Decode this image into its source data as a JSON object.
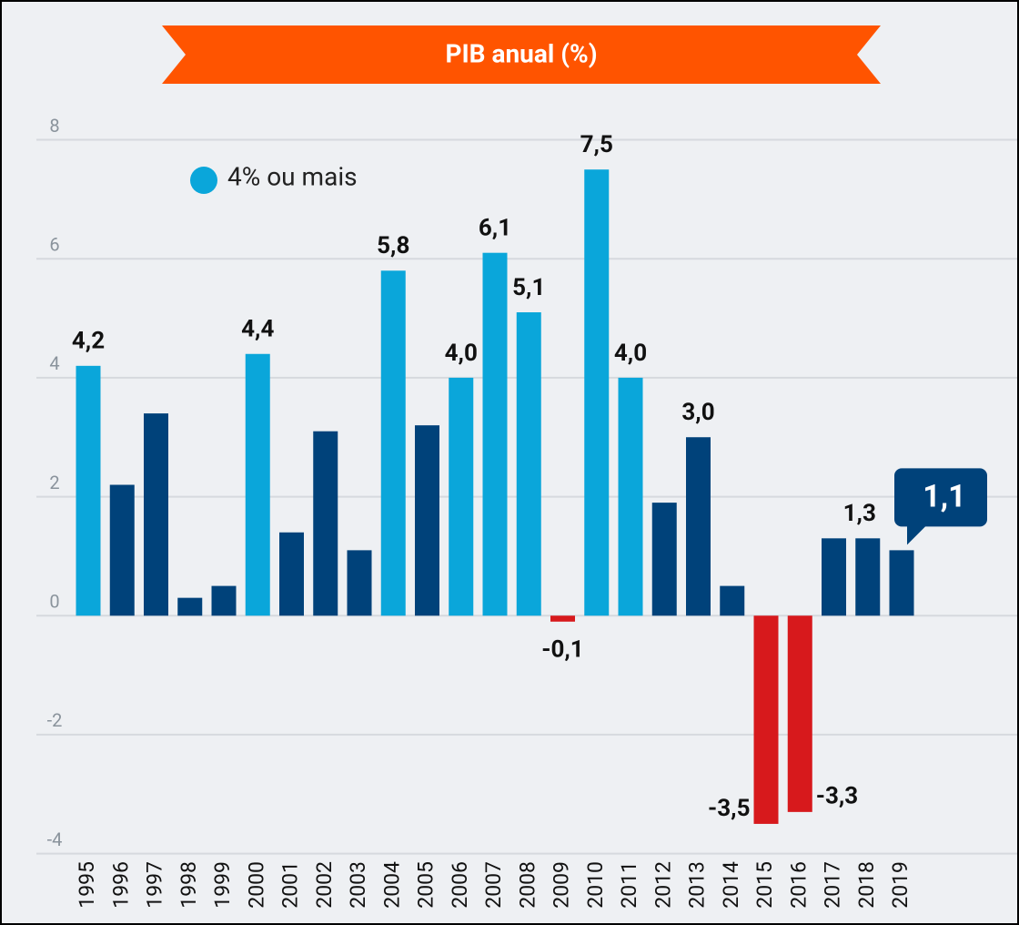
{
  "chart_data": {
    "type": "bar",
    "title": "PIB anual (%)",
    "legend": {
      "label": "4% ou mais",
      "color": "#0aa6da"
    },
    "categories": [
      "1995",
      "1996",
      "1997",
      "1998",
      "1999",
      "2000",
      "2001",
      "2002",
      "2003",
      "2004",
      "2005",
      "2006",
      "2007",
      "2008",
      "2009",
      "2010",
      "2011",
      "2012",
      "2013",
      "2014",
      "2015",
      "2016",
      "2017",
      "2018",
      "2019"
    ],
    "values": [
      4.2,
      2.2,
      3.4,
      0.3,
      0.5,
      4.4,
      1.4,
      3.1,
      1.1,
      5.8,
      3.2,
      4.0,
      6.1,
      5.1,
      -0.1,
      7.5,
      4.0,
      1.9,
      3.0,
      0.5,
      -3.5,
      -3.3,
      1.3,
      1.3,
      1.1
    ],
    "value_labels": [
      "4,2",
      null,
      null,
      null,
      null,
      "4,4",
      null,
      null,
      null,
      "5,8",
      null,
      "4,0",
      "6,1",
      "5,1",
      "-0,1",
      "7,5",
      "4,0",
      null,
      "3,0",
      null,
      "-3,5",
      "-3,3",
      null,
      "1,3",
      "1,1"
    ],
    "colors": [
      "#0aa6da",
      "#00427a",
      "#00427a",
      "#00427a",
      "#00427a",
      "#0aa6da",
      "#00427a",
      "#00427a",
      "#00427a",
      "#0aa6da",
      "#00427a",
      "#0aa6da",
      "#0aa6da",
      "#0aa6da",
      "#d7191c",
      "#0aa6da",
      "#0aa6da",
      "#00427a",
      "#00427a",
      "#00427a",
      "#d7191c",
      "#d7191c",
      "#00427a",
      "#00427a",
      "#00427a"
    ],
    "ylim": [
      -5.2,
      10.35
    ],
    "yticks": [
      -4,
      -2,
      0,
      2,
      4,
      6,
      8
    ],
    "grid": true
  }
}
